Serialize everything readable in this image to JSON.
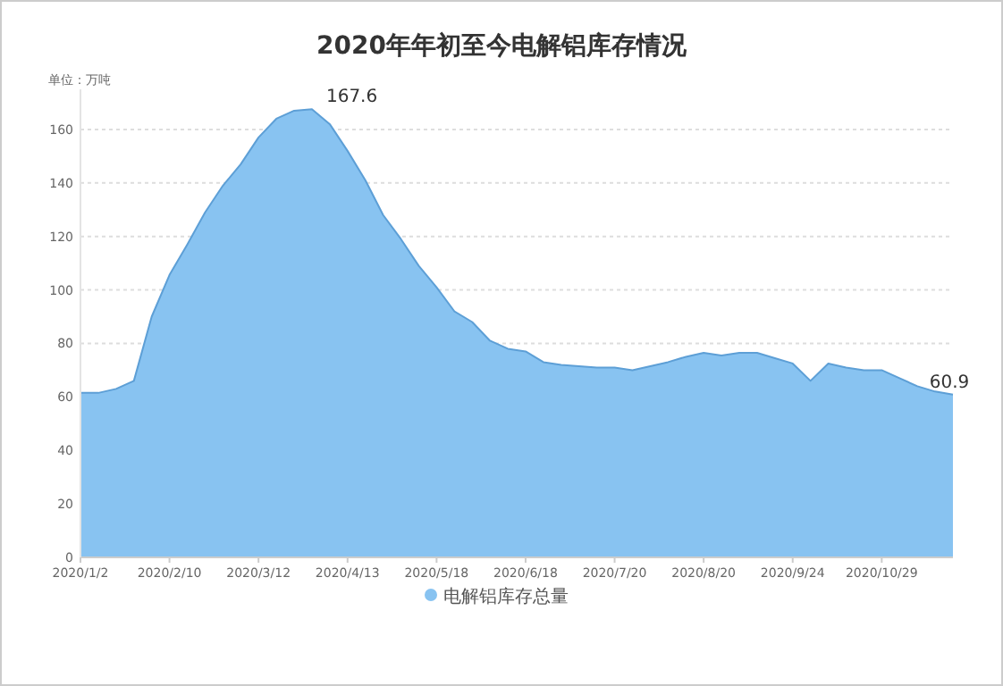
{
  "chart_data": {
    "type": "area",
    "title": "2020年年初至今电解铝库存情况",
    "ylabel": "单位：万吨",
    "categories": [
      "2020/1/2",
      null,
      null,
      null,
      null,
      "2020/2/10",
      null,
      null,
      null,
      null,
      "2020/3/12",
      null,
      null,
      null,
      null,
      "2020/4/13",
      null,
      null,
      null,
      null,
      "2020/5/18",
      null,
      null,
      null,
      null,
      "2020/6/18",
      null,
      null,
      null,
      null,
      "2020/7/20",
      null,
      null,
      null,
      null,
      "2020/8/20",
      null,
      null,
      null,
      null,
      "2020/9/24",
      null,
      null,
      null,
      null,
      "2020/10/29",
      null,
      null,
      null,
      null
    ],
    "series": [
      {
        "name": "电解铝库存总量",
        "color": "#88c3f1",
        "values": [
          61.5,
          61.5,
          63,
          66,
          90,
          105.6,
          117,
          129,
          139,
          147,
          157,
          164,
          167,
          167.6,
          162,
          152,
          141,
          128,
          119,
          109,
          101,
          92,
          88,
          81,
          78,
          77,
          73,
          72,
          71.5,
          71,
          71,
          70,
          71.5,
          73,
          75,
          76.5,
          75.5,
          76.5,
          76.5,
          74.5,
          72.5,
          66,
          72.5,
          71,
          70,
          70,
          67,
          64,
          62,
          60.9
        ],
        "value_labels": [
          null,
          null,
          null,
          null,
          null,
          null,
          null,
          null,
          null,
          null,
          null,
          null,
          null,
          "167.6",
          null,
          null,
          null,
          null,
          null,
          null,
          null,
          null,
          null,
          null,
          null,
          null,
          null,
          null,
          null,
          null,
          null,
          null,
          null,
          null,
          null,
          null,
          null,
          null,
          null,
          null,
          null,
          null,
          null,
          null,
          null,
          null,
          null,
          null,
          null,
          "60.9"
        ]
      }
    ],
    "ylim": [
      0,
      175
    ],
    "yticks": [
      0,
      20,
      40,
      60,
      80,
      100,
      120,
      140,
      160
    ],
    "grid": "y",
    "legend": "bottom"
  }
}
